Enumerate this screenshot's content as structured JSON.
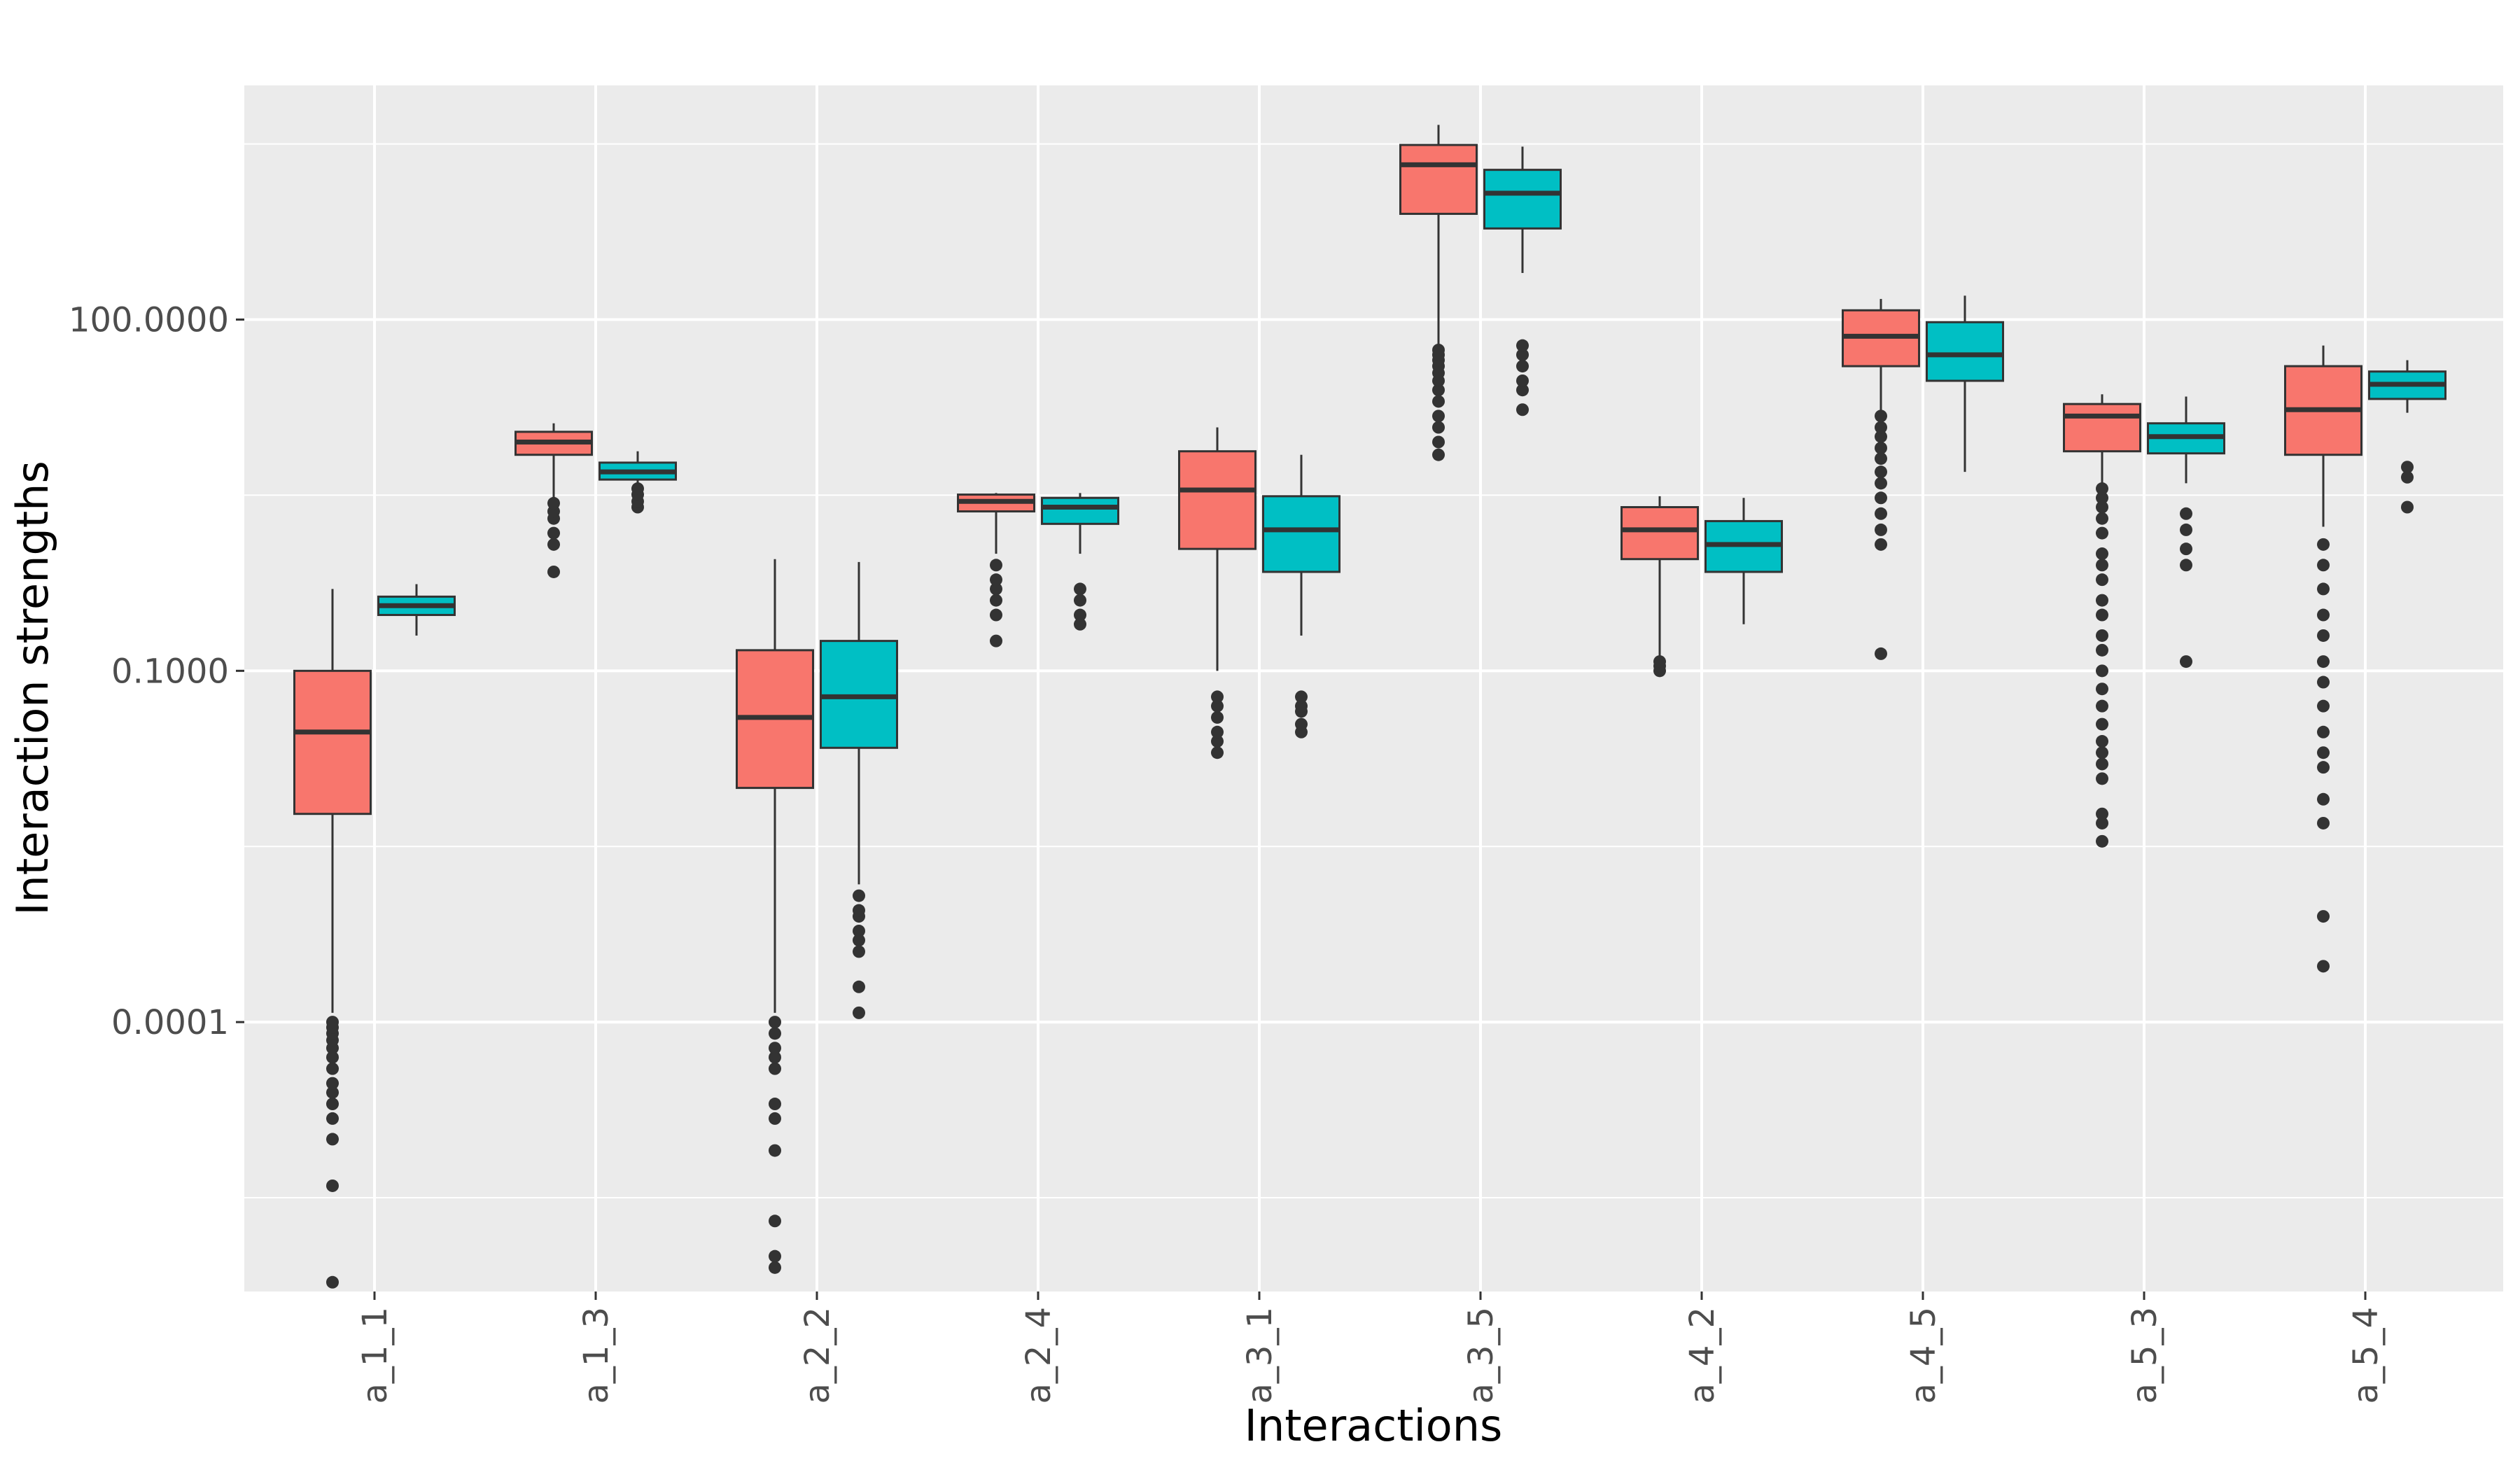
{
  "chart_data": {
    "type": "boxplot",
    "title": "",
    "xlabel": "Interactions",
    "ylabel": "Interaction strengths",
    "y_scale": "log10",
    "ylim": [
      5e-07,
      10000
    ],
    "y_ticks": [
      0.0001,
      0.1,
      100
    ],
    "y_tick_labels": [
      "0.0001",
      "0.1000",
      "100.0000"
    ],
    "grid": true,
    "legend": "none",
    "categories": [
      "a_1_1",
      "a_1_3",
      "a_2_2",
      "a_2_4",
      "a_3_1",
      "a_3_5",
      "a_4_2",
      "a_4_5",
      "a_5_3",
      "a_5_4"
    ],
    "series": [
      {
        "color": "#F8766D",
        "boxes": [
          {
            "whisker_low": 0.00012,
            "q1": 0.006,
            "median": 0.03,
            "q3": 0.1,
            "whisker_high": 0.5,
            "outliers": [
              6e-07,
              4e-06,
              1e-05,
              1.5e-05,
              2e-05,
              2.5e-05,
              3e-05,
              4e-05,
              5e-05,
              6e-05,
              7e-05,
              8e-05,
              9e-05,
              0.0001
            ]
          },
          {
            "whisker_low": 3.0,
            "q1": 7.0,
            "median": 9.0,
            "q3": 11.0,
            "whisker_high": 13.0,
            "outliers": [
              0.7,
              1.2,
              1.5,
              2.0,
              2.3,
              2.7
            ]
          },
          {
            "whisker_low": 0.00012,
            "q1": 0.01,
            "median": 0.04,
            "q3": 0.15,
            "whisker_high": 0.9,
            "outliers": [
              8e-07,
              1e-06,
              2e-06,
              8e-06,
              1.5e-05,
              2e-05,
              4e-05,
              5e-05,
              6e-05,
              8e-05,
              0.0001
            ]
          },
          {
            "whisker_low": 1.0,
            "q1": 2.3,
            "median": 2.8,
            "q3": 3.2,
            "whisker_high": 3.3,
            "outliers": [
              0.18,
              0.3,
              0.4,
              0.5,
              0.6,
              0.8
            ]
          },
          {
            "whisker_low": 0.1,
            "q1": 1.1,
            "median": 3.5,
            "q3": 7.5,
            "whisker_high": 12.0,
            "outliers": [
              0.02,
              0.025,
              0.03,
              0.04,
              0.05,
              0.06
            ]
          },
          {
            "whisker_low": 60,
            "q1": 800,
            "median": 2100,
            "q3": 3100,
            "whisker_high": 4600,
            "outliers": [
              7,
              9,
              12,
              15,
              20,
              25,
              30,
              35,
              40,
              45,
              50,
              55
            ]
          },
          {
            "whisker_low": 0.13,
            "q1": 0.9,
            "median": 1.6,
            "q3": 2.5,
            "whisker_high": 3.1,
            "outliers": [
              0.1,
              0.11,
              0.12
            ]
          },
          {
            "whisker_low": 16,
            "q1": 40,
            "median": 72,
            "q3": 120,
            "whisker_high": 150,
            "outliers": [
              0.14,
              1.2,
              1.6,
              2.2,
              3,
              4,
              5,
              6.5,
              8,
              10,
              12,
              15
            ]
          },
          {
            "whisker_low": 4.0,
            "q1": 7.5,
            "median": 15,
            "q3": 19,
            "whisker_high": 23,
            "outliers": [
              0.0035,
              0.005,
              0.006,
              0.012,
              0.016,
              0.02,
              0.025,
              0.035,
              0.05,
              0.07,
              0.1,
              0.15,
              0.2,
              0.3,
              0.4,
              0.6,
              0.8,
              1.0,
              1.5,
              2.0,
              2.5,
              3.0,
              3.6
            ]
          },
          {
            "whisker_low": 1.7,
            "q1": 7,
            "median": 17,
            "q3": 40,
            "whisker_high": 60,
            "outliers": [
              0.0003,
              0.0008,
              0.005,
              0.008,
              0.015,
              0.02,
              0.03,
              0.05,
              0.08,
              0.12,
              0.2,
              0.3,
              0.5,
              0.8,
              1.2
            ]
          }
        ]
      },
      {
        "color": "#00BFC4",
        "boxes": [
          {
            "whisker_low": 0.2,
            "q1": 0.3,
            "median": 0.36,
            "q3": 0.43,
            "whisker_high": 0.55,
            "outliers": []
          },
          {
            "whisker_low": 4.0,
            "q1": 4.3,
            "median": 5.0,
            "q3": 6.0,
            "whisker_high": 7.5,
            "outliers": [
              2.5,
              2.8,
              3.2,
              3.6
            ]
          },
          {
            "whisker_low": 0.0015,
            "q1": 0.022,
            "median": 0.06,
            "q3": 0.18,
            "whisker_high": 0.85,
            "outliers": [
              0.00012,
              0.0002,
              0.0004,
              0.0005,
              0.0006,
              0.0008,
              0.0009,
              0.0012
            ]
          },
          {
            "whisker_low": 1.0,
            "q1": 1.8,
            "median": 2.5,
            "q3": 3.0,
            "whisker_high": 3.3,
            "outliers": [
              0.25,
              0.3,
              0.4,
              0.5
            ]
          },
          {
            "whisker_low": 0.2,
            "q1": 0.7,
            "median": 1.6,
            "q3": 3.1,
            "whisker_high": 7.0,
            "outliers": [
              0.03,
              0.035,
              0.045,
              0.05,
              0.06
            ]
          },
          {
            "whisker_low": 250,
            "q1": 600,
            "median": 1200,
            "q3": 1900,
            "whisker_high": 3000,
            "outliers": [
              17,
              25,
              30,
              40,
              50,
              60
            ]
          },
          {
            "whisker_low": 0.25,
            "q1": 0.7,
            "median": 1.2,
            "q3": 1.9,
            "whisker_high": 3.0,
            "outliers": []
          },
          {
            "whisker_low": 5,
            "q1": 30,
            "median": 50,
            "q3": 95,
            "whisker_high": 160,
            "outliers": []
          },
          {
            "whisker_low": 4,
            "q1": 7.2,
            "median": 10,
            "q3": 13,
            "whisker_high": 22,
            "outliers": [
              0.12,
              0.8,
              1.1,
              1.6,
              2.2
            ]
          },
          {
            "whisker_low": 16,
            "q1": 21,
            "median": 28,
            "q3": 36,
            "whisker_high": 45,
            "outliers": [
              2.5,
              4.5,
              5.5
            ]
          }
        ]
      }
    ]
  }
}
